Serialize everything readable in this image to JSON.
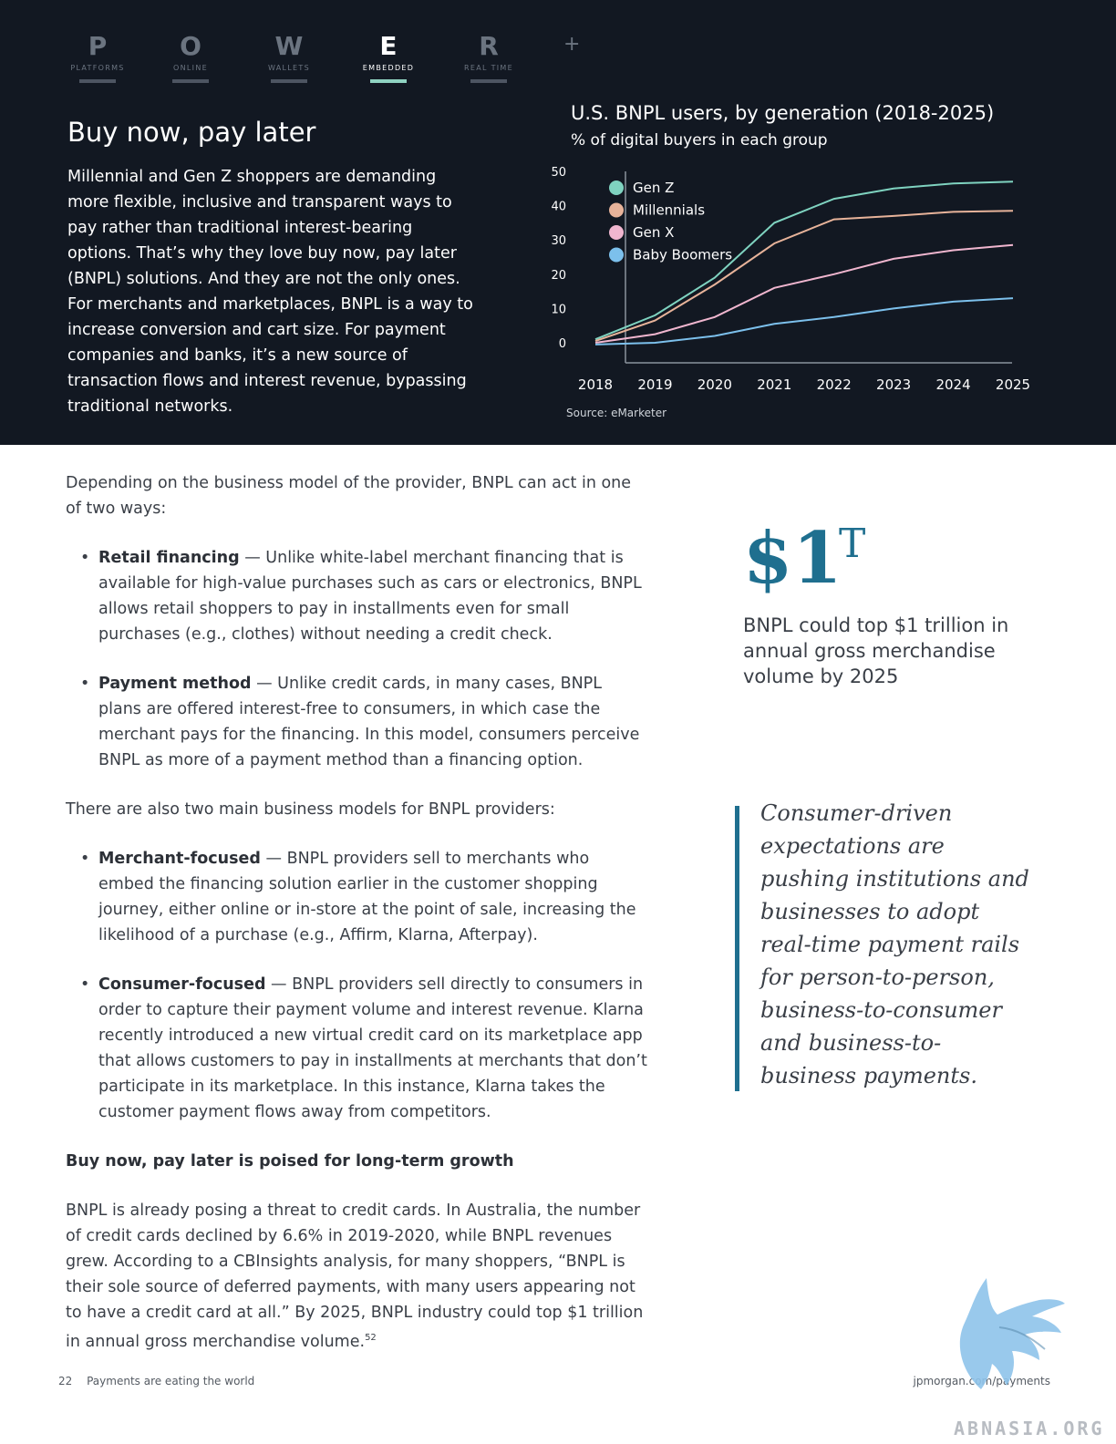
{
  "nav": {
    "items": [
      {
        "letter": "P",
        "caption": "PLATFORMS"
      },
      {
        "letter": "O",
        "caption": "ONLINE"
      },
      {
        "letter": "W",
        "caption": "WALLETS"
      },
      {
        "letter": "E",
        "caption": "EMBEDDED",
        "active": true
      },
      {
        "letter": "R",
        "caption": "REAL TIME"
      }
    ],
    "plus": "+"
  },
  "hero": {
    "title": "Buy now, pay later",
    "body": "Millennial and Gen Z shoppers are demanding more flexible, inclusive and transparent ways to pay rather than traditional interest-bearing options. That’s why they love buy now, pay later (BNPL) solutions. And they are not the only ones. For merchants and marketplaces, BNPL is a way to increase conversion and cart size. For payment companies and banks, it’s a new source of transaction flows and interest revenue, bypassing traditional networks."
  },
  "chart_data": {
    "type": "line",
    "title": "U.S. BNPL users, by generation (2018-2025)",
    "subtitle": "% of digital buyers in each group",
    "source": "Source: eMarketer",
    "x": [
      "2018",
      "2019",
      "2020",
      "2021",
      "2022",
      "2023",
      "2024",
      "2025"
    ],
    "yticks": [
      "0",
      "10",
      "20",
      "30",
      "40",
      "50"
    ],
    "ylim": [
      0,
      50
    ],
    "grid": false,
    "legend_position": "top-left",
    "series": [
      {
        "name": "Gen Z",
        "color": "#7fd3c0",
        "values": [
          1,
          8,
          19,
          35,
          42,
          45,
          46.5,
          47
        ]
      },
      {
        "name": "Millennials",
        "color": "#e7b39a",
        "values": [
          0.5,
          6.5,
          17,
          29,
          36,
          37,
          38.2,
          38.5
        ]
      },
      {
        "name": "Gen X",
        "color": "#f0b6cf",
        "values": [
          0,
          2.5,
          7.5,
          16,
          20,
          24.5,
          27,
          28.5
        ]
      },
      {
        "name": "Baby Boomers",
        "color": "#7cc0ec",
        "values": [
          -0.5,
          0,
          2,
          5.5,
          7.5,
          10,
          12,
          13
        ]
      }
    ]
  },
  "main": {
    "intro": "Depending on the business model of the provider, BNPL can act in one of two ways:",
    "ways": [
      {
        "term": "Retail financing",
        "text": " — Unlike white-label merchant financing that is available for high-value purchases such as cars or electronics, BNPL allows retail shoppers to pay in installments even for small purchases (e.g., clothes) without needing a credit check."
      },
      {
        "term": "Payment method",
        "text": " — Unlike credit cards, in many cases, BNPL plans are offered interest-free to consumers, in which case the merchant pays for the financing. In this model, consumers perceive BNPL as more of a payment method than a financing option."
      }
    ],
    "models_intro": "There are also two main business models for BNPL providers:",
    "models": [
      {
        "term": "Merchant-focused",
        "text": " — BNPL providers sell to merchants who embed the financing solution earlier in the customer shopping journey, either online or in-store at the point of sale, increasing the likelihood of a purchase (e.g., Affirm, Klarna, Afterpay)."
      },
      {
        "term": "Consumer-focused",
        "text": " — BNPL providers sell directly to consumers in order to capture their payment volume and interest revenue. Klarna recently introduced a new virtual credit card on its marketplace app that allows customers to pay in installments at merchants that don’t participate in its marketplace. In this instance, Klarna takes the customer payment flows away from competitors."
      }
    ],
    "subhead": "Buy now, pay later is poised for long-term growth",
    "closing": "BNPL is already posing a threat to credit cards. In Australia, the number of credit cards declined by 6.6% in 2019-2020, while BNPL revenues grew. According to a CBInsights analysis, for many shoppers, “BNPL is their sole source of deferred payments, with many users appearing not to have a credit card at all.” By 2025, BNPL industry could top $1 trillion in annual gross merchandise volume.",
    "footnote": "52"
  },
  "stat": {
    "value": "$1",
    "unit": "T",
    "caption": "BNPL could top $1 trillion in annual gross merchandise volume by 2025"
  },
  "quote": "Consumer-driven expectations are pushing institutions and businesses to adopt real-time payment rails for person-to-person, business-to-consumer and business-to-business payments.",
  "footer": {
    "page_number": "22",
    "publication": "Payments are eating the world",
    "url": "jpmorgan.com/payments"
  },
  "watermark": {
    "text": "ABNASIA.ORG",
    "color": "#8ec3ea"
  }
}
